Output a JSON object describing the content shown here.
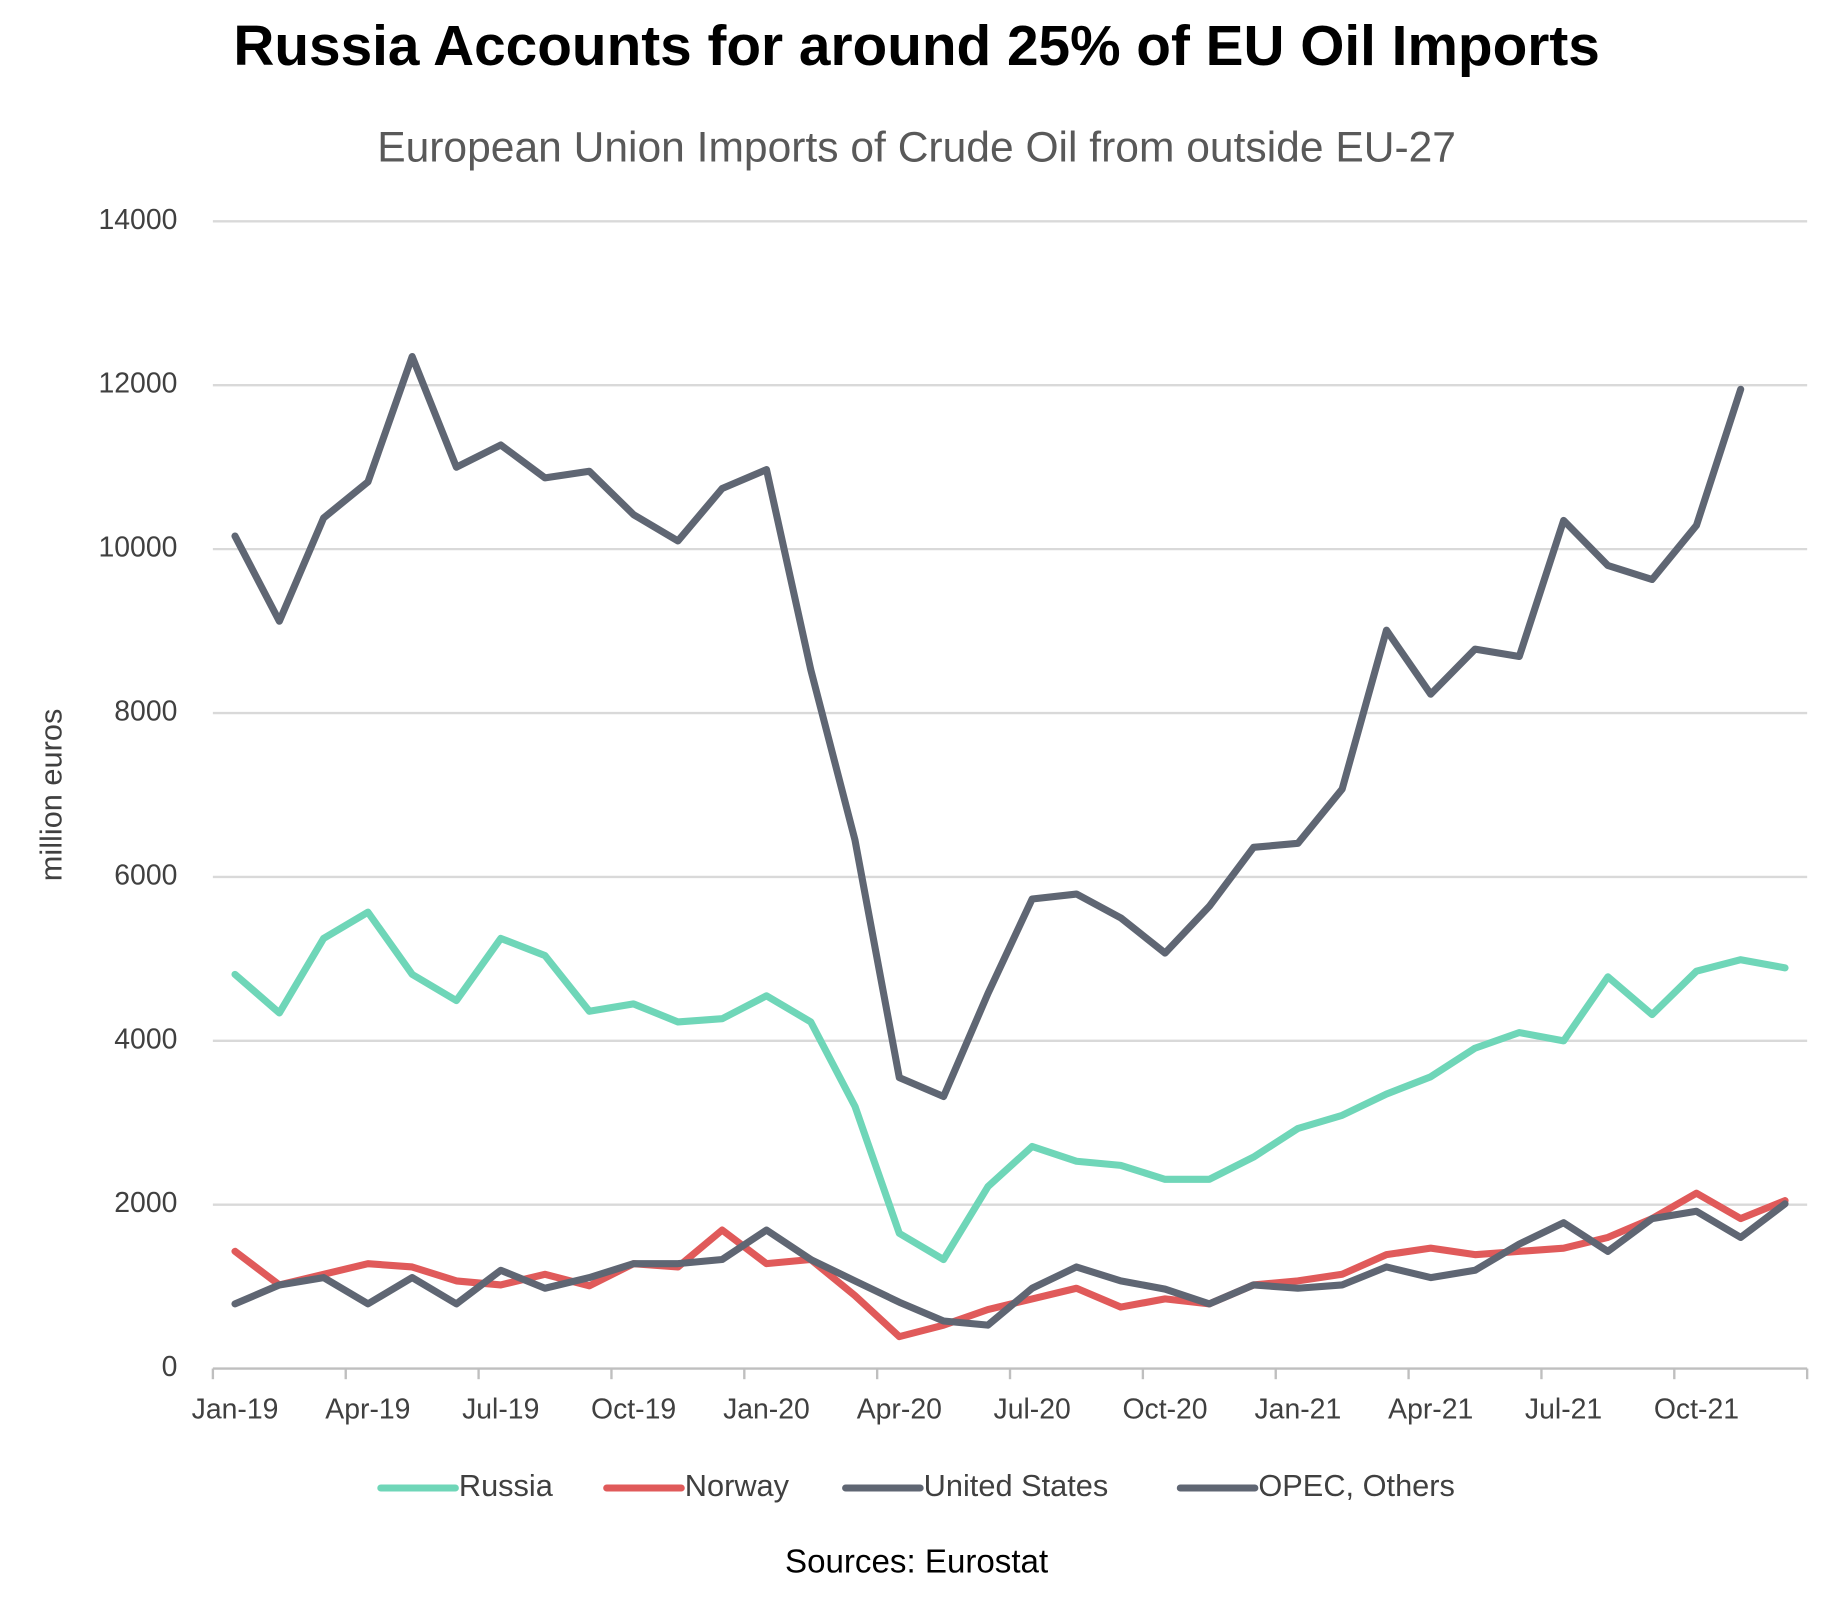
{
  "chart_data": {
    "type": "line",
    "title": "Russia Accounts for around 25% of EU Oil Imports",
    "subtitle": "European Union Imports of Crude Oil from outside EU-27",
    "y_label": "million euros",
    "source": "Sources: Eurostat",
    "categories": [
      "Jan-19",
      null,
      null,
      "Apr-19",
      null,
      null,
      "Jul-19",
      null,
      null,
      "Oct-19",
      null,
      null,
      "Jan-20",
      null,
      null,
      "Apr-20",
      null,
      null,
      "Jul-20",
      null,
      null,
      "Oct-20",
      null,
      null,
      "Jan-21",
      null,
      null,
      "Apr-21",
      null,
      null,
      "Jul-21",
      null,
      null,
      "Oct-21",
      null,
      null
    ],
    "series": [
      {
        "name": "Russia",
        "color": "#6fd6b8",
        "values": [
          4810,
          4340,
          5250,
          5570,
          4810,
          4490,
          5250,
          5040,
          4360,
          4450,
          4230,
          4270,
          4550,
          4230,
          3200,
          1650,
          1330,
          2220,
          2710,
          2530,
          2480,
          2310,
          2310,
          2580,
          2930,
          3090,
          3350,
          3560,
          3910,
          4100,
          4000,
          4780,
          4320,
          4850,
          4990,
          4890
        ]
      },
      {
        "name": "Norway",
        "color": "#e05a5a",
        "values": [
          1430,
          1020,
          1150,
          1280,
          1240,
          1070,
          1020,
          1150,
          1010,
          1280,
          1240,
          1690,
          1280,
          1330,
          890,
          390,
          530,
          720,
          850,
          980,
          750,
          850,
          790,
          1020,
          1070,
          1150,
          1390,
          1470,
          1390,
          1430,
          1470,
          1600,
          1830,
          2140,
          1830,
          2050
        ]
      },
      {
        "name": "United States",
        "color": "#5f6673",
        "values": [
          790,
          1020,
          1110,
          790,
          1110,
          790,
          1200,
          980,
          1110,
          1280,
          1280,
          1330,
          1690,
          1330,
          1070,
          810,
          580,
          530,
          980,
          1240,
          1070,
          970,
          790,
          1020,
          980,
          1020,
          1240,
          1110,
          1200,
          1520,
          1780,
          1430,
          1830,
          1920,
          1600,
          2010
        ]
      },
      {
        "name": "OPEC, Others",
        "color": "#5f6673",
        "values": [
          10160,
          9120,
          10380,
          10820,
          12350,
          11000,
          11270,
          10870,
          10950,
          10420,
          10100,
          10740,
          10970,
          8530,
          6450,
          3550,
          3320,
          4575,
          5730,
          5790,
          5500,
          5070,
          5640,
          6360,
          6410,
          7070,
          9010,
          8230,
          8780,
          8690,
          10350,
          9800,
          9630,
          10290,
          11950,
          null
        ]
      }
    ],
    "ylim": [
      0,
      14000
    ],
    "yticks": [
      0,
      2000,
      4000,
      6000,
      8000,
      10000,
      12000,
      14000
    ],
    "grid": true,
    "legend": "bottom"
  }
}
